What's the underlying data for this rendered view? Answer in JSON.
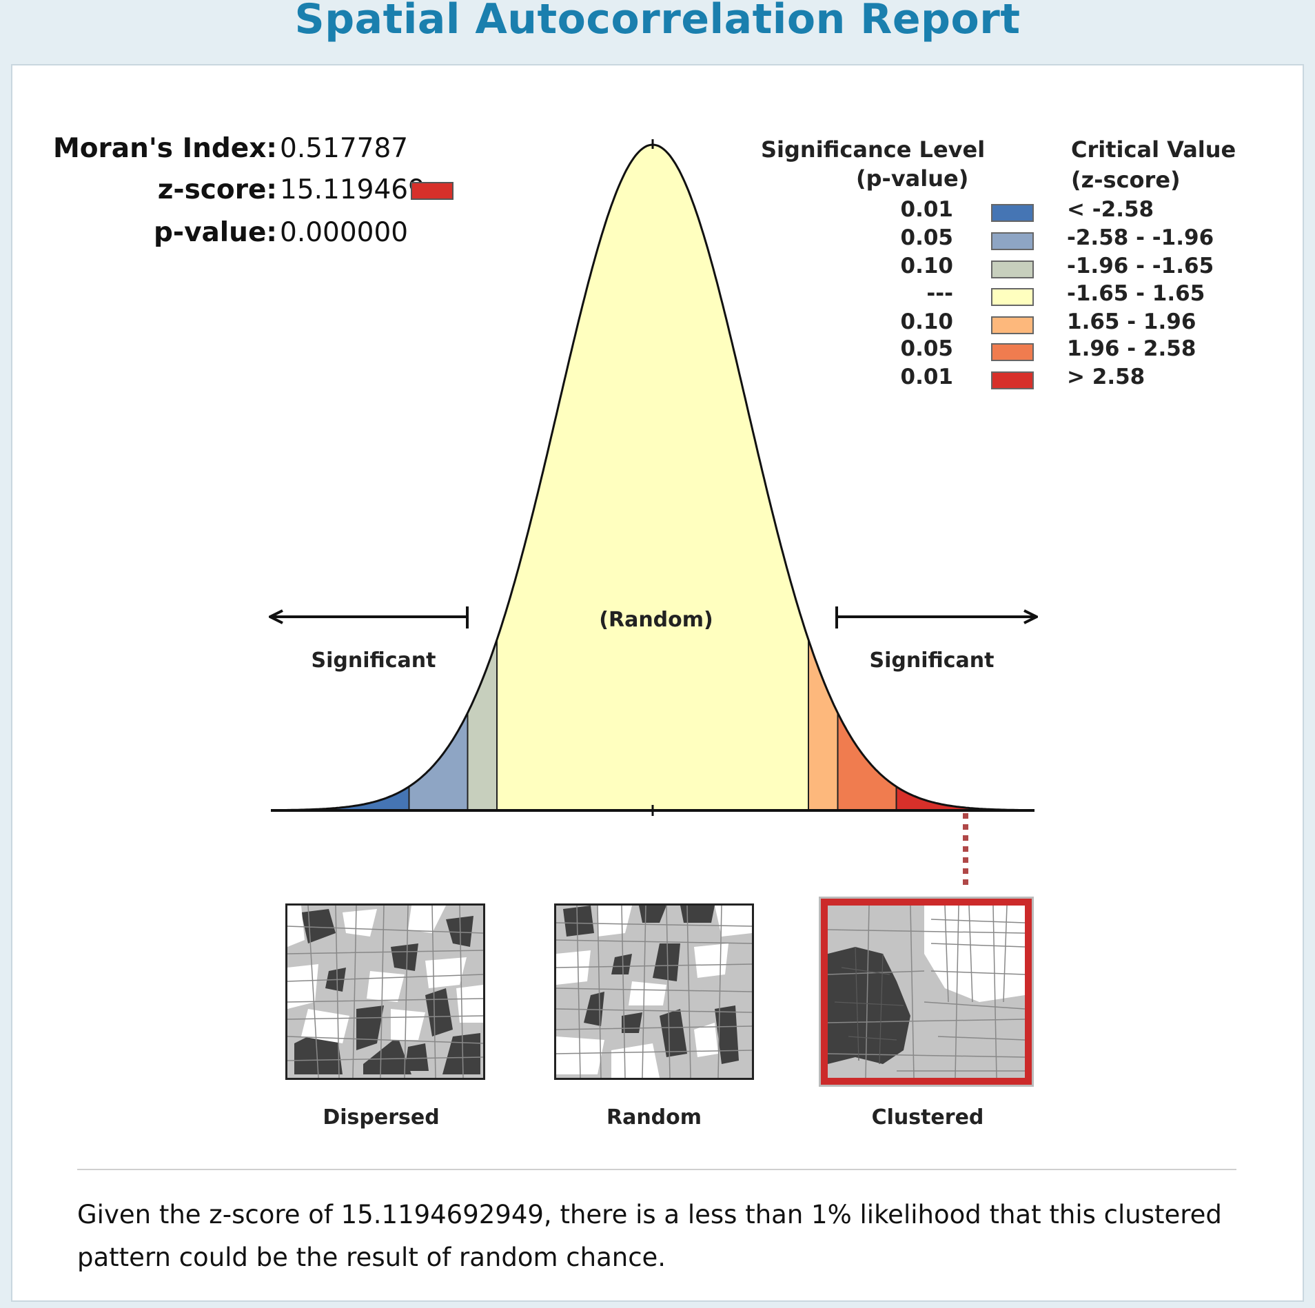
{
  "report": {
    "title": "Spatial Autocorrelation Report"
  },
  "stats": {
    "morans_index_label": "Moran's Index:",
    "morans_index_value": "0.517787",
    "zscore_label": "z-score:",
    "zscore_value": "15.119469",
    "pvalue_label": "p-value:",
    "pvalue_value": "0.000000",
    "zscore_swatch_color": "#d7302a"
  },
  "legend": {
    "sig_header_1": "Significance Level",
    "sig_header_2": "(p-value)",
    "crit_header_1": "Critical Value",
    "crit_header_2": "(z-score)",
    "rows": [
      {
        "p": "0.01",
        "z": "< -2.58",
        "color": "#4575b4"
      },
      {
        "p": "0.05",
        "z": "-2.58 - -1.96",
        "color": "#8ea5c4"
      },
      {
        "p": "0.10",
        "z": "-1.96 - -1.65",
        "color": "#c7cfbd"
      },
      {
        "p": "---",
        "z": "-1.65 - 1.65",
        "color": "#ffffbf"
      },
      {
        "p": "0.10",
        "z": "1.65 - 1.96",
        "color": "#fdb87c"
      },
      {
        "p": "0.05",
        "z": "1.96 - 2.58",
        "color": "#f07c4f"
      },
      {
        "p": "0.01",
        "z": "> 2.58",
        "color": "#d7302a"
      }
    ]
  },
  "chart_data": {
    "type": "area",
    "title": "",
    "xlabel": "z-score",
    "ylabel": "",
    "xlim": [
      -4,
      4
    ],
    "distribution": "standard normal",
    "bands": [
      {
        "from": -4.0,
        "to": -2.58,
        "color": "#4575b4"
      },
      {
        "from": -2.58,
        "to": -1.96,
        "color": "#8ea5c4"
      },
      {
        "from": -1.96,
        "to": -1.65,
        "color": "#c7cfbd"
      },
      {
        "from": -1.65,
        "to": 1.65,
        "color": "#ffffbf"
      },
      {
        "from": 1.65,
        "to": 1.96,
        "color": "#fdb87c"
      },
      {
        "from": 1.96,
        "to": 2.58,
        "color": "#f07c4f"
      },
      {
        "from": 2.58,
        "to": 4.0,
        "color": "#d7302a"
      }
    ],
    "center_label": "(Random)",
    "left_label": "Significant",
    "right_label": "Significant",
    "observed_zscore": 15.119469
  },
  "patterns": {
    "dispersed_label": "Dispersed",
    "random_label": "Random",
    "clustered_label": "Clustered",
    "selected": "Clustered"
  },
  "summary": {
    "text": "Given the z-score of 15.1194692949, there is a less than 1% likelihood that this clustered pattern could be the result of random chance."
  }
}
